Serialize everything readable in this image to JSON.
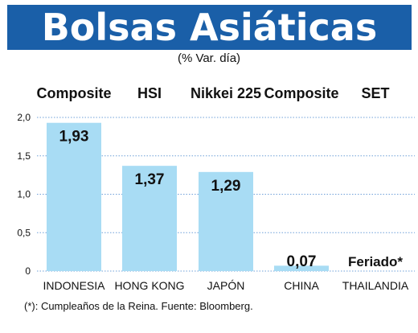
{
  "header": {
    "title": "Bolsas Asiáticas",
    "subtitle": "(% Var. día)"
  },
  "colors": {
    "title_bg": "#1a5fa8",
    "bar": "#a8dcf4",
    "grid": "#6fa0d8"
  },
  "chart_data": {
    "type": "bar",
    "index_names": [
      "Composite",
      "HSI",
      "Nikkei 225",
      "Composite",
      "SET"
    ],
    "categories": [
      "INDONESIA",
      "HONG KONG",
      "JAPÓN",
      "CHINA",
      "THAILANDIA"
    ],
    "values": [
      1.93,
      1.37,
      1.29,
      0.07,
      null
    ],
    "data_labels": [
      "1,93",
      "1,37",
      "1,29",
      "0,07",
      "Feriado*"
    ],
    "ylim": [
      0,
      2.0
    ],
    "yticks": [
      0,
      0.5,
      1.0,
      1.5,
      2.0
    ],
    "ytick_labels": [
      "0",
      "0,5",
      "1,0",
      "1,5",
      "2,0"
    ],
    "grid": true
  },
  "footnote": "(*): Cumpleaños de la Reina. Fuente: Bloomberg."
}
